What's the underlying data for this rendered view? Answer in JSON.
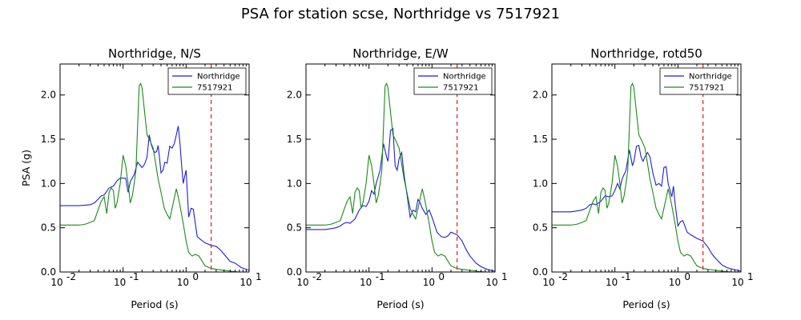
{
  "figure": {
    "title": "PSA for station scse, Northridge vs 7517921"
  },
  "chart_data": [
    {
      "type": "line",
      "title": "Northridge, N/S",
      "xlabel": "Period (s)",
      "ylabel": "PSA (g)",
      "xscale": "log",
      "xlim": [
        0.01,
        10
      ],
      "ylim": [
        0,
        2.35
      ],
      "x_tick_labels": [
        "10",
        "10",
        "10",
        "10"
      ],
      "x_tick_exponents": [
        "-2",
        "-1",
        "0",
        "1"
      ],
      "y_ticks": [
        0,
        0.5,
        1.0,
        1.5,
        2.0
      ],
      "y_tick_labels": [
        "0.0",
        "0.5",
        "1.0",
        "1.5",
        "2.0"
      ],
      "grid": false,
      "legend_position": "top-right",
      "vline": {
        "x": 2.5,
        "color": "#e41a1c",
        "style": "dashed"
      },
      "series": [
        {
          "name": "Northridge",
          "color": "#1f1fd6",
          "x": [
            0.01,
            0.02,
            0.03,
            0.035,
            0.04,
            0.045,
            0.05,
            0.06,
            0.07,
            0.08,
            0.09,
            0.1,
            0.11,
            0.12,
            0.13,
            0.15,
            0.17,
            0.19,
            0.2,
            0.22,
            0.24,
            0.26,
            0.28,
            0.3,
            0.32,
            0.34,
            0.36,
            0.38,
            0.4,
            0.43,
            0.46,
            0.5,
            0.55,
            0.6,
            0.65,
            0.7,
            0.75,
            0.8,
            0.85,
            0.9,
            0.95,
            1.0,
            1.1,
            1.2,
            1.3,
            1.5,
            1.75,
            2.0,
            2.5,
            3.0,
            3.5,
            4.0,
            5.0,
            6.0,
            7.5,
            10.0
          ],
          "y": [
            0.75,
            0.75,
            0.76,
            0.78,
            0.82,
            0.86,
            0.87,
            0.95,
            0.97,
            1.03,
            1.06,
            1.06,
            1.06,
            0.9,
            1.02,
            1.1,
            1.24,
            1.2,
            1.18,
            1.22,
            1.3,
            1.55,
            1.44,
            1.38,
            1.35,
            1.36,
            1.43,
            1.28,
            1.12,
            1.15,
            1.24,
            1.23,
            1.42,
            1.4,
            1.45,
            1.55,
            1.65,
            1.45,
            1.2,
            1.0,
            1.08,
            1.15,
            0.62,
            0.72,
            0.71,
            0.4,
            0.36,
            0.33,
            0.3,
            0.29,
            0.25,
            0.2,
            0.12,
            0.1,
            0.05,
            0.02
          ]
        },
        {
          "name": "7517921",
          "color": "#1a8a1a",
          "x": [
            0.01,
            0.02,
            0.025,
            0.03,
            0.035,
            0.04,
            0.045,
            0.05,
            0.055,
            0.06,
            0.065,
            0.07,
            0.075,
            0.08,
            0.09,
            0.1,
            0.11,
            0.12,
            0.13,
            0.14,
            0.15,
            0.16,
            0.17,
            0.18,
            0.19,
            0.2,
            0.22,
            0.24,
            0.26,
            0.28,
            0.3,
            0.33,
            0.36,
            0.4,
            0.45,
            0.5,
            0.55,
            0.6,
            0.7,
            0.75,
            0.8,
            0.9,
            1.0,
            1.1,
            1.25,
            1.4,
            1.6,
            1.8,
            2.0,
            2.5,
            3.0,
            4.0,
            5.0,
            7.0,
            10.0
          ],
          "y": [
            0.53,
            0.53,
            0.54,
            0.56,
            0.58,
            0.7,
            0.8,
            0.85,
            0.66,
            0.9,
            0.95,
            0.92,
            0.72,
            0.78,
            1.0,
            1.32,
            1.2,
            1.0,
            0.78,
            0.86,
            1.0,
            1.15,
            1.65,
            2.1,
            2.13,
            2.08,
            1.8,
            1.55,
            1.5,
            1.45,
            1.4,
            1.22,
            1.05,
            0.9,
            0.72,
            0.65,
            0.6,
            0.72,
            0.94,
            0.85,
            0.75,
            0.55,
            0.35,
            0.22,
            0.18,
            0.2,
            0.18,
            0.12,
            0.07,
            0.04,
            0.03,
            0.02,
            0.01,
            0.0,
            0.0
          ]
        }
      ]
    },
    {
      "type": "line",
      "title": "Northridge, E/W",
      "xlabel": "Period (s)",
      "ylabel": "",
      "xscale": "log",
      "xlim": [
        0.01,
        10
      ],
      "ylim": [
        0,
        2.35
      ],
      "x_tick_labels": [
        "10",
        "10",
        "10",
        "10"
      ],
      "x_tick_exponents": [
        "-2",
        "-1",
        "0",
        "1"
      ],
      "y_ticks": [
        0,
        0.5,
        1.0,
        1.5,
        2.0
      ],
      "y_tick_labels": [
        "0.0",
        "0.5",
        "1.0",
        "1.5",
        "2.0"
      ],
      "grid": false,
      "legend_position": "top-right",
      "vline": {
        "x": 2.5,
        "color": "#e41a1c",
        "style": "dashed"
      },
      "series": [
        {
          "name": "Northridge",
          "color": "#1f1fd6",
          "x": [
            0.01,
            0.02,
            0.025,
            0.03,
            0.035,
            0.04,
            0.045,
            0.05,
            0.06,
            0.07,
            0.08,
            0.09,
            0.1,
            0.11,
            0.12,
            0.13,
            0.15,
            0.17,
            0.19,
            0.2,
            0.22,
            0.24,
            0.26,
            0.28,
            0.3,
            0.33,
            0.36,
            0.4,
            0.45,
            0.5,
            0.55,
            0.6,
            0.65,
            0.7,
            0.8,
            0.9,
            1.0,
            1.2,
            1.4,
            1.6,
            1.8,
            2.0,
            2.5,
            3.0,
            3.5,
            4.0,
            5.0,
            6.0,
            7.5,
            10.0
          ],
          "y": [
            0.48,
            0.48,
            0.49,
            0.5,
            0.52,
            0.55,
            0.56,
            0.55,
            0.6,
            0.7,
            0.75,
            0.74,
            0.8,
            0.92,
            0.88,
            1.0,
            1.15,
            1.45,
            1.3,
            1.25,
            1.6,
            1.62,
            1.2,
            1.15,
            1.28,
            1.35,
            1.1,
            0.88,
            0.62,
            0.7,
            0.68,
            0.82,
            0.78,
            0.72,
            0.65,
            0.7,
            0.62,
            0.45,
            0.4,
            0.39,
            0.41,
            0.45,
            0.42,
            0.35,
            0.25,
            0.18,
            0.1,
            0.06,
            0.03,
            0.01
          ]
        },
        {
          "name": "7517921",
          "color": "#1a8a1a",
          "x": [
            0.01,
            0.02,
            0.025,
            0.03,
            0.035,
            0.04,
            0.045,
            0.05,
            0.055,
            0.06,
            0.065,
            0.07,
            0.075,
            0.08,
            0.09,
            0.1,
            0.11,
            0.12,
            0.13,
            0.14,
            0.15,
            0.16,
            0.17,
            0.18,
            0.19,
            0.2,
            0.22,
            0.24,
            0.26,
            0.28,
            0.3,
            0.33,
            0.36,
            0.4,
            0.45,
            0.5,
            0.55,
            0.6,
            0.7,
            0.75,
            0.8,
            0.9,
            1.0,
            1.1,
            1.25,
            1.4,
            1.6,
            1.8,
            2.0,
            2.5,
            3.0,
            4.0,
            5.0,
            7.0,
            10.0
          ],
          "y": [
            0.53,
            0.53,
            0.54,
            0.56,
            0.58,
            0.7,
            0.8,
            0.85,
            0.66,
            0.9,
            0.95,
            0.92,
            0.72,
            0.78,
            1.0,
            1.32,
            1.2,
            1.0,
            0.78,
            0.86,
            1.0,
            1.15,
            1.65,
            2.1,
            2.13,
            2.08,
            1.8,
            1.55,
            1.5,
            1.45,
            1.4,
            1.22,
            1.05,
            0.9,
            0.72,
            0.65,
            0.6,
            0.72,
            0.94,
            0.85,
            0.75,
            0.55,
            0.35,
            0.22,
            0.18,
            0.2,
            0.18,
            0.12,
            0.07,
            0.04,
            0.03,
            0.02,
            0.01,
            0.0,
            0.0
          ]
        }
      ]
    },
    {
      "type": "line",
      "title": "Northridge, rotd50",
      "xlabel": "Period (s)",
      "ylabel": "",
      "xscale": "log",
      "xlim": [
        0.01,
        10
      ],
      "ylim": [
        0,
        2.35
      ],
      "x_tick_labels": [
        "10",
        "10",
        "10",
        "10"
      ],
      "x_tick_exponents": [
        "-2",
        "-1",
        "0",
        "1"
      ],
      "y_ticks": [
        0,
        0.5,
        1.0,
        1.5,
        2.0
      ],
      "y_tick_labels": [
        "0.0",
        "0.5",
        "1.0",
        "1.5",
        "2.0"
      ],
      "grid": false,
      "legend_position": "top-right",
      "vline": {
        "x": 2.5,
        "color": "#e41a1c",
        "style": "dashed"
      },
      "series": [
        {
          "name": "Northridge",
          "color": "#1f1fd6",
          "x": [
            0.01,
            0.02,
            0.025,
            0.03,
            0.035,
            0.04,
            0.045,
            0.05,
            0.06,
            0.07,
            0.08,
            0.09,
            0.1,
            0.11,
            0.12,
            0.13,
            0.15,
            0.17,
            0.19,
            0.2,
            0.22,
            0.24,
            0.26,
            0.28,
            0.3,
            0.33,
            0.36,
            0.4,
            0.45,
            0.5,
            0.55,
            0.6,
            0.65,
            0.7,
            0.8,
            0.85,
            0.9,
            1.0,
            1.1,
            1.2,
            1.4,
            1.6,
            1.8,
            2.0,
            2.5,
            3.0,
            3.5,
            4.0,
            5.0,
            6.0,
            7.5,
            10.0
          ],
          "y": [
            0.68,
            0.68,
            0.69,
            0.7,
            0.72,
            0.76,
            0.77,
            0.76,
            0.8,
            0.86,
            0.85,
            0.86,
            0.92,
            1.0,
            0.94,
            1.05,
            1.15,
            1.38,
            1.2,
            1.25,
            1.42,
            1.43,
            1.3,
            1.25,
            1.3,
            1.35,
            1.3,
            1.12,
            0.98,
            1.0,
            0.97,
            1.18,
            1.19,
            1.0,
            0.85,
            0.97,
            0.78,
            0.52,
            0.57,
            0.58,
            0.45,
            0.42,
            0.4,
            0.38,
            0.35,
            0.28,
            0.2,
            0.15,
            0.08,
            0.05,
            0.03,
            0.01
          ]
        },
        {
          "name": "7517921",
          "color": "#1a8a1a",
          "x": [
            0.01,
            0.02,
            0.025,
            0.03,
            0.035,
            0.04,
            0.045,
            0.05,
            0.055,
            0.06,
            0.065,
            0.07,
            0.075,
            0.08,
            0.09,
            0.1,
            0.11,
            0.12,
            0.13,
            0.14,
            0.15,
            0.16,
            0.17,
            0.18,
            0.19,
            0.2,
            0.22,
            0.24,
            0.26,
            0.28,
            0.3,
            0.33,
            0.36,
            0.4,
            0.45,
            0.5,
            0.55,
            0.6,
            0.7,
            0.75,
            0.8,
            0.9,
            1.0,
            1.1,
            1.25,
            1.4,
            1.6,
            1.8,
            2.0,
            2.5,
            3.0,
            4.0,
            5.0,
            7.0,
            10.0
          ],
          "y": [
            0.53,
            0.53,
            0.54,
            0.56,
            0.58,
            0.7,
            0.8,
            0.85,
            0.66,
            0.9,
            0.95,
            0.92,
            0.72,
            0.78,
            1.0,
            1.32,
            1.2,
            1.0,
            0.78,
            0.86,
            1.0,
            1.15,
            1.65,
            2.1,
            2.13,
            2.08,
            1.8,
            1.55,
            1.5,
            1.45,
            1.4,
            1.22,
            1.05,
            0.9,
            0.72,
            0.65,
            0.6,
            0.72,
            0.94,
            0.85,
            0.75,
            0.55,
            0.35,
            0.22,
            0.18,
            0.2,
            0.18,
            0.12,
            0.07,
            0.04,
            0.03,
            0.02,
            0.01,
            0.0,
            0.0
          ]
        }
      ]
    }
  ]
}
